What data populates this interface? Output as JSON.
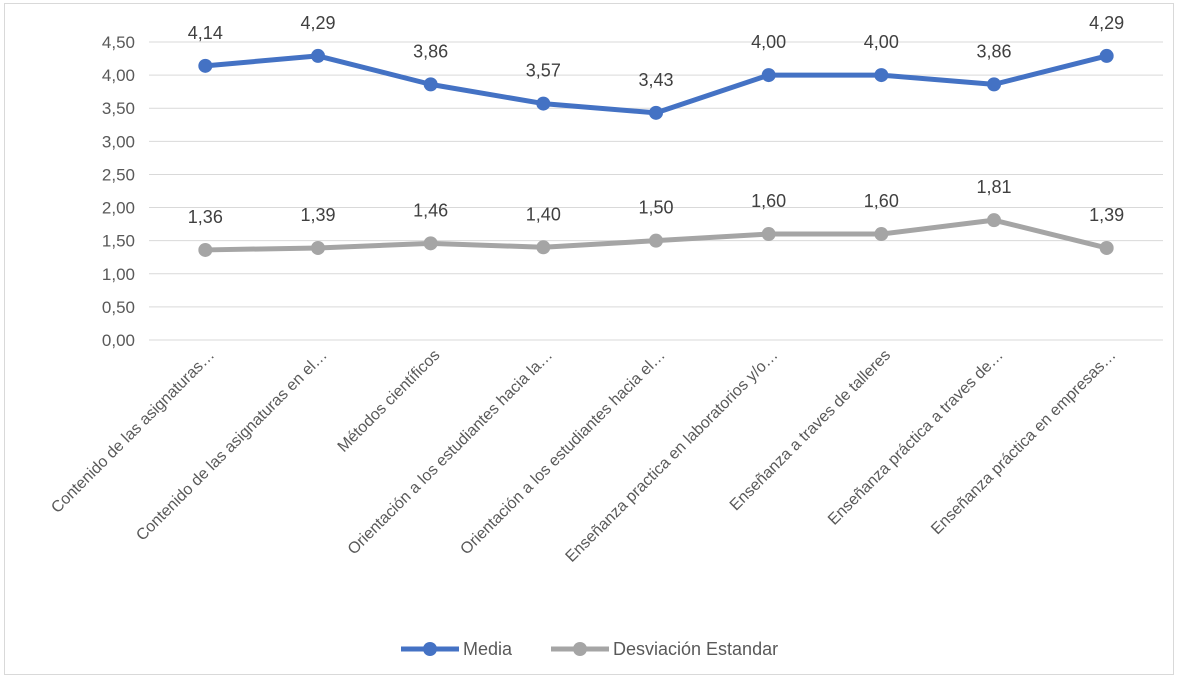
{
  "chart_data": {
    "type": "line",
    "categories": [
      "Contenido de las asignaturas…",
      "Contenido de las asignaturas en el…",
      "Métodos científicos",
      "Orientación a los estudiantes hacia la…",
      "Orientación a los estudiantes hacia el…",
      "Enseñanza practica en laboratorios y/o…",
      "Enseñanza a traves de talleres",
      "Enseñanza práctica a traves de…",
      "Enseñanza práctica en empresas…"
    ],
    "series": [
      {
        "name": "Media",
        "values": [
          4.14,
          4.29,
          3.86,
          3.57,
          3.43,
          4.0,
          4.0,
          3.86,
          4.29
        ],
        "labels": [
          "4,14",
          "4,29",
          "3,86",
          "3,57",
          "3,43",
          "4,00",
          "4,00",
          "3,86",
          "4,29"
        ],
        "color": "#4472c4"
      },
      {
        "name": "Desviación Estandar",
        "values": [
          1.36,
          1.39,
          1.46,
          1.4,
          1.5,
          1.6,
          1.6,
          1.81,
          1.39
        ],
        "labels": [
          "1,36",
          "1,39",
          "1,46",
          "1,40",
          "1,50",
          "1,60",
          "1,60",
          "1,81",
          "1,39"
        ],
        "color": "#a5a5a5"
      }
    ],
    "y_ticks": [
      "0,00",
      "0,50",
      "1,00",
      "1,50",
      "2,00",
      "2,50",
      "3,00",
      "3,50",
      "4,00",
      "4,50"
    ],
    "ylim": [
      0,
      4.5
    ],
    "grid": true,
    "legend": "bottom"
  }
}
